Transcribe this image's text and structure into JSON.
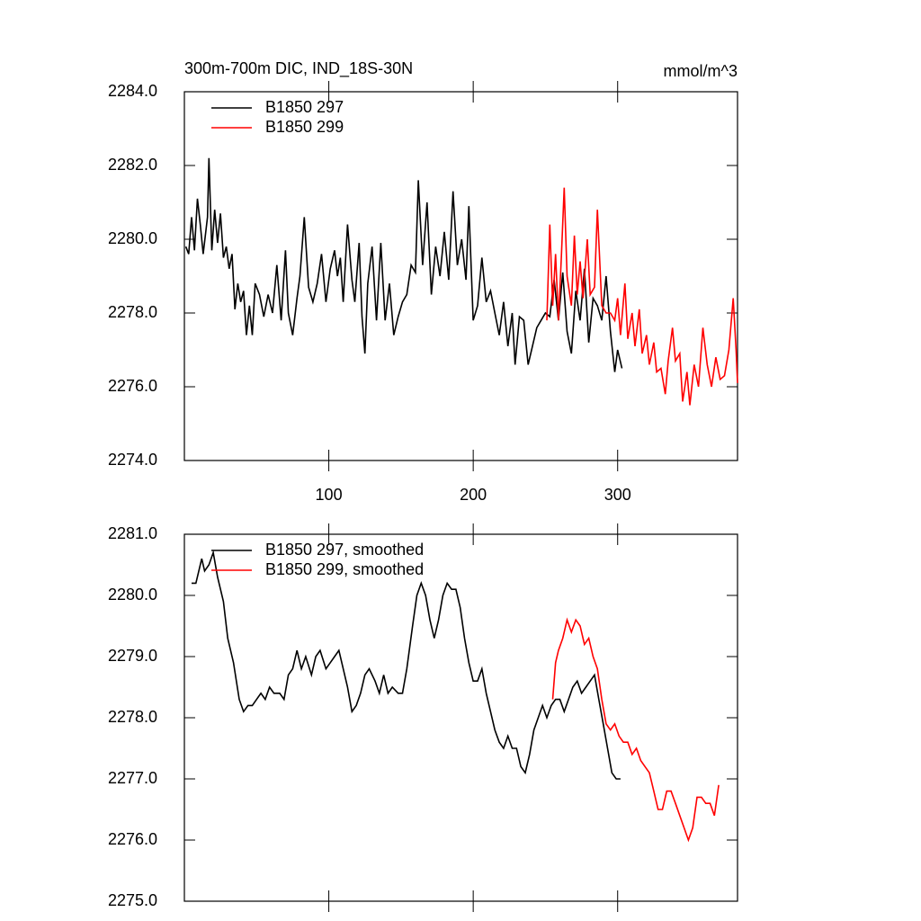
{
  "chart_data": [
    {
      "type": "line",
      "title": "300m-700m DIC, IND_18S-30N",
      "units_label": "mmol/m^3",
      "legend": "upper left",
      "xlim": [
        0,
        383
      ],
      "xticks": [
        100,
        200,
        300
      ],
      "ylim": [
        2274,
        2284
      ],
      "yticks": [
        {
          "value": 2274,
          "label": "2274.0"
        },
        {
          "value": 2276,
          "label": "2276.0"
        },
        {
          "value": 2278,
          "label": "2278.0"
        },
        {
          "value": 2280,
          "label": "2280.0"
        },
        {
          "value": 2282,
          "label": "2282.0"
        },
        {
          "value": 2284,
          "label": "2284.0"
        }
      ],
      "series": [
        {
          "name": "B1850 297",
          "color": "#000000",
          "x": [
            1,
            3,
            5,
            7,
            9,
            11,
            13,
            16,
            17,
            19,
            21,
            23,
            25,
            27,
            29,
            31,
            33,
            35,
            37,
            39,
            41,
            43,
            45,
            47,
            49,
            52,
            55,
            58,
            61,
            64,
            67,
            70,
            72,
            75,
            78,
            80,
            83,
            86,
            89,
            92,
            95,
            98,
            101,
            104,
            106,
            108,
            110,
            113,
            116,
            118,
            121,
            123,
            125,
            127,
            130,
            133,
            136,
            139,
            142,
            145,
            148,
            151,
            154,
            157,
            160,
            162,
            165,
            168,
            171,
            174,
            177,
            180,
            183,
            186,
            189,
            192,
            195,
            197,
            200,
            203,
            206,
            209,
            212,
            215,
            218,
            221,
            224,
            227,
            229,
            232,
            235,
            238,
            241,
            244,
            247,
            250,
            253,
            256,
            259,
            262,
            265,
            268,
            271,
            274,
            277,
            280,
            283,
            286,
            289,
            292,
            295,
            298,
            300,
            303
          ],
          "values": [
            2279.8,
            2279.6,
            2280.6,
            2279.7,
            2281.1,
            2280.4,
            2279.6,
            2280.6,
            2282.2,
            2279.7,
            2280.8,
            2279.9,
            2280.7,
            2279.5,
            2279.8,
            2279.2,
            2279.6,
            2278.1,
            2278.8,
            2278.3,
            2278.6,
            2277.4,
            2278.2,
            2277.4,
            2278.8,
            2278.5,
            2277.9,
            2278.5,
            2278.0,
            2279.3,
            2277.8,
            2279.7,
            2278.0,
            2277.4,
            2278.4,
            2279.0,
            2280.6,
            2278.7,
            2278.3,
            2278.8,
            2279.6,
            2278.3,
            2279.2,
            2279.7,
            2279.0,
            2279.5,
            2278.3,
            2280.4,
            2278.9,
            2278.3,
            2279.9,
            2277.9,
            2276.9,
            2278.8,
            2279.8,
            2277.8,
            2279.9,
            2277.8,
            2278.8,
            2277.4,
            2277.9,
            2278.3,
            2278.5,
            2279.3,
            2279.1,
            2281.6,
            2279.3,
            2281.0,
            2278.5,
            2279.8,
            2279.0,
            2280.2,
            2278.9,
            2281.3,
            2279.3,
            2280.0,
            2278.9,
            2280.9,
            2277.8,
            2278.2,
            2279.5,
            2278.3,
            2278.6,
            2278.0,
            2277.4,
            2278.3,
            2277.1,
            2278.0,
            2276.6,
            2277.9,
            2277.8,
            2276.6,
            2277.1,
            2277.6,
            2277.8,
            2278.0,
            2277.9,
            2278.9,
            2277.8,
            2279.1,
            2277.5,
            2276.9,
            2278.6,
            2277.8,
            2279.2,
            2277.2,
            2278.4,
            2278.2,
            2277.8,
            2279.0,
            2277.5,
            2276.4,
            2277.0,
            2276.5
          ]
        },
        {
          "name": "B1850 299",
          "color": "#ff0000",
          "x": [
            251,
            253,
            255,
            257,
            259,
            261,
            263,
            265,
            268,
            270,
            272,
            274,
            276,
            279,
            281,
            284,
            286,
            289,
            292,
            295,
            298,
            300,
            302,
            305,
            307,
            310,
            312,
            315,
            317,
            320,
            322,
            325,
            327,
            330,
            333,
            335,
            338,
            340,
            343,
            345,
            348,
            350,
            353,
            356,
            359,
            362,
            365,
            368,
            371,
            374,
            377,
            380,
            382,
            383
          ],
          "values": [
            2277.8,
            2280.4,
            2278.2,
            2279.6,
            2277.8,
            2279.5,
            2281.4,
            2279.0,
            2278.2,
            2280.1,
            2278.5,
            2279.4,
            2278.4,
            2280.0,
            2278.5,
            2278.7,
            2280.8,
            2278.2,
            2278.0,
            2278.0,
            2277.8,
            2278.4,
            2277.4,
            2278.8,
            2277.3,
            2278.0,
            2277.1,
            2278.1,
            2276.9,
            2277.4,
            2276.6,
            2277.2,
            2276.4,
            2276.5,
            2275.8,
            2276.7,
            2277.6,
            2276.7,
            2276.9,
            2275.6,
            2276.4,
            2275.5,
            2276.6,
            2276.0,
            2277.6,
            2276.6,
            2276.0,
            2276.8,
            2276.2,
            2276.3,
            2277.0,
            2278.4,
            2277.0,
            2276.1
          ]
        }
      ]
    },
    {
      "type": "line",
      "legend": "upper left",
      "xlim": [
        0,
        383
      ],
      "xticks": [
        100,
        200,
        300
      ],
      "show_xtick_labels": false,
      "ylim": [
        2275,
        2281
      ],
      "yticks": [
        {
          "value": 2275,
          "label": "2275.0"
        },
        {
          "value": 2276,
          "label": "2276.0"
        },
        {
          "value": 2277,
          "label": "2277.0"
        },
        {
          "value": 2278,
          "label": "2278.0"
        },
        {
          "value": 2279,
          "label": "2279.0"
        },
        {
          "value": 2280,
          "label": "2280.0"
        },
        {
          "value": 2281,
          "label": "2281.0"
        }
      ],
      "series": [
        {
          "name": "B1850 297, smoothed",
          "color": "#000000",
          "x": [
            5,
            8,
            12,
            14,
            17,
            20,
            23,
            27,
            30,
            34,
            38,
            41,
            44,
            47,
            50,
            53,
            56,
            59,
            62,
            66,
            69,
            72,
            75,
            78,
            81,
            84,
            88,
            91,
            94,
            98,
            101,
            104,
            107,
            110,
            113,
            116,
            119,
            122,
            125,
            128,
            132,
            135,
            138,
            141,
            144,
            148,
            151,
            154,
            158,
            161,
            164,
            167,
            170,
            173,
            176,
            179,
            182,
            185,
            188,
            191,
            194,
            197,
            200,
            203,
            206,
            209,
            212,
            215,
            218,
            221,
            224,
            227,
            230,
            233,
            236,
            239,
            242,
            245,
            248,
            251,
            254,
            257,
            260,
            263,
            266,
            269,
            272,
            275,
            278,
            281,
            284,
            287,
            290,
            293,
            296,
            299,
            302
          ],
          "values": [
            2280.2,
            2280.2,
            2280.6,
            2280.4,
            2280.5,
            2280.7,
            2280.3,
            2279.9,
            2279.3,
            2278.9,
            2278.3,
            2278.1,
            2278.2,
            2278.2,
            2278.3,
            2278.4,
            2278.3,
            2278.5,
            2278.4,
            2278.4,
            2278.3,
            2278.7,
            2278.8,
            2279.1,
            2278.8,
            2279.0,
            2278.7,
            2279.0,
            2279.1,
            2278.8,
            2278.9,
            2279.0,
            2279.1,
            2278.8,
            2278.5,
            2278.1,
            2278.2,
            2278.4,
            2278.7,
            2278.8,
            2278.6,
            2278.4,
            2278.7,
            2278.4,
            2278.5,
            2278.4,
            2278.4,
            2278.8,
            2279.5,
            2280.0,
            2280.2,
            2280.0,
            2279.6,
            2279.3,
            2279.6,
            2280.0,
            2280.2,
            2280.1,
            2280.1,
            2279.8,
            2279.3,
            2278.9,
            2278.6,
            2278.6,
            2278.8,
            2278.4,
            2278.1,
            2277.8,
            2277.6,
            2277.5,
            2277.7,
            2277.5,
            2277.5,
            2277.2,
            2277.1,
            2277.4,
            2277.8,
            2278.0,
            2278.2,
            2278.0,
            2278.2,
            2278.3,
            2278.3,
            2278.1,
            2278.3,
            2278.5,
            2278.6,
            2278.4,
            2278.5,
            2278.6,
            2278.7,
            2278.3,
            2277.9,
            2277.5,
            2277.1,
            2277.0,
            2277.0
          ]
        },
        {
          "name": "B1850 299, smoothed",
          "color": "#ff0000",
          "x": [
            255,
            257,
            259,
            262,
            265,
            268,
            271,
            274,
            277,
            280,
            283,
            286,
            289,
            292,
            295,
            298,
            301,
            304,
            307,
            310,
            313,
            316,
            319,
            322,
            325,
            328,
            331,
            334,
            337,
            340,
            343,
            346,
            349,
            352,
            355,
            358,
            361,
            364,
            367,
            370
          ],
          "values": [
            2278.3,
            2278.9,
            2279.1,
            2279.3,
            2279.6,
            2279.4,
            2279.6,
            2279.5,
            2279.2,
            2279.3,
            2279.0,
            2278.8,
            2278.3,
            2277.9,
            2277.8,
            2277.9,
            2277.7,
            2277.6,
            2277.6,
            2277.4,
            2277.5,
            2277.3,
            2277.2,
            2277.1,
            2276.8,
            2276.5,
            2276.5,
            2276.8,
            2276.8,
            2276.6,
            2276.4,
            2276.2,
            2276.0,
            2276.2,
            2276.7,
            2276.7,
            2276.6,
            2276.6,
            2276.4,
            2276.9
          ]
        }
      ]
    }
  ]
}
